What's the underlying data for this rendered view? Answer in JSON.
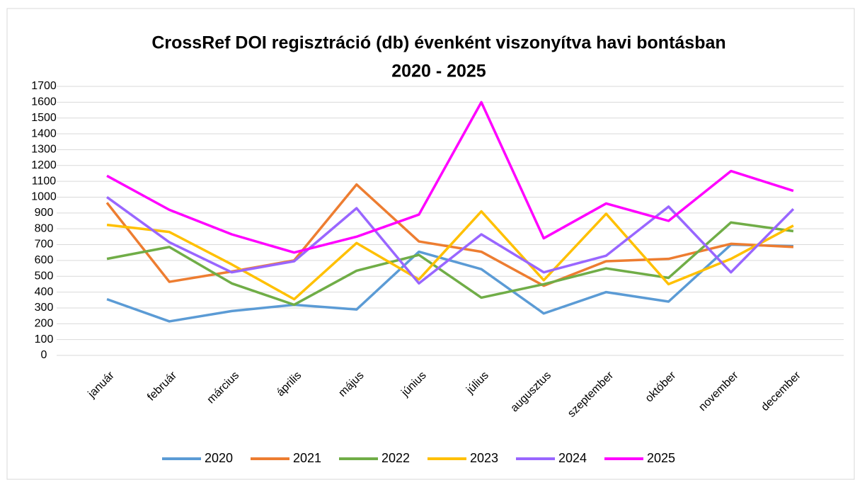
{
  "chart_data": {
    "type": "line",
    "title": [
      "CrossRef DOI regisztráció (db) évenként viszonyítva havi bontásban",
      "2020 - 2025"
    ],
    "categories": [
      "január",
      "február",
      "március",
      "április",
      "május",
      "június",
      "július",
      "augusztus",
      "szeptember",
      "október",
      "november",
      "december"
    ],
    "series": [
      {
        "name": "2020",
        "color": "#5b9bd5",
        "values": [
          355,
          215,
          280,
          320,
          290,
          655,
          545,
          265,
          400,
          340,
          700,
          690
        ]
      },
      {
        "name": "2021",
        "color": "#ed7d31",
        "values": [
          965,
          465,
          530,
          600,
          1080,
          720,
          655,
          440,
          595,
          610,
          705,
          685
        ]
      },
      {
        "name": "2022",
        "color": "#70ad47",
        "values": [
          610,
          685,
          455,
          320,
          535,
          635,
          365,
          450,
          550,
          490,
          840,
          785
        ]
      },
      {
        "name": "2023",
        "color": "#ffc000",
        "values": [
          825,
          780,
          575,
          355,
          710,
          480,
          910,
          475,
          895,
          450,
          610,
          820
        ]
      },
      {
        "name": "2024",
        "color": "#9966ff",
        "values": [
          1000,
          715,
          525,
          595,
          930,
          455,
          765,
          525,
          630,
          940,
          525,
          925
        ]
      },
      {
        "name": "2025",
        "color": "#ff00ff",
        "values": [
          1135,
          920,
          765,
          650,
          750,
          890,
          1600,
          740,
          960,
          850,
          1165,
          1040
        ]
      }
    ],
    "ylim": [
      0,
      1700
    ],
    "yticks": [
      0,
      100,
      200,
      300,
      400,
      500,
      600,
      700,
      800,
      900,
      1000,
      1100,
      1200,
      1300,
      1400,
      1500,
      1600,
      1700
    ],
    "grid": true,
    "legend": "bottom"
  }
}
